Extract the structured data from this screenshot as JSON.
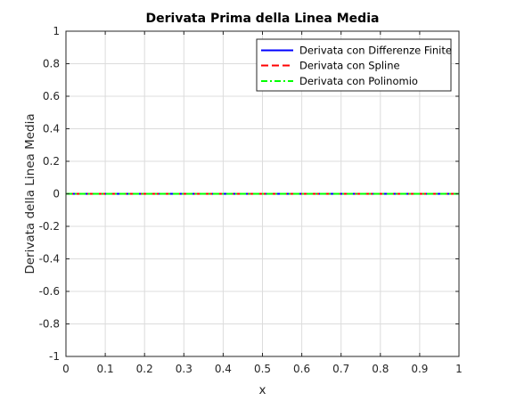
{
  "chart_data": {
    "type": "line",
    "title": "Derivata Prima della Linea Media",
    "xlabel": "x",
    "ylabel": "Derivata della Linea Media",
    "xlim": [
      0,
      1
    ],
    "ylim": [
      -1,
      1
    ],
    "x_ticks": [
      "0",
      "0.1",
      "0.2",
      "0.3",
      "0.4",
      "0.5",
      "0.6",
      "0.7",
      "0.8",
      "0.9",
      "1"
    ],
    "y_ticks": [
      "-1",
      "-0.8",
      "-0.6",
      "-0.4",
      "-0.2",
      "0",
      "0.2",
      "0.4",
      "0.6",
      "0.8",
      "1"
    ],
    "grid": true,
    "legend_position": "top-right",
    "series": [
      {
        "name": "Derivata con Differenze Finite",
        "color": "#0000ff",
        "style": "solid",
        "x": [
          0,
          0.1,
          0.2,
          0.3,
          0.4,
          0.5,
          0.6,
          0.7,
          0.8,
          0.9,
          1
        ],
        "y": [
          0,
          0,
          0,
          0,
          0,
          0,
          0,
          0,
          0,
          0,
          0
        ]
      },
      {
        "name": "Derivata con Spline",
        "color": "#ff0000",
        "style": "dashed",
        "x": [
          0,
          0.1,
          0.2,
          0.3,
          0.4,
          0.5,
          0.6,
          0.7,
          0.8,
          0.9,
          1
        ],
        "y": [
          0,
          0,
          0,
          0,
          0,
          0,
          0,
          0,
          0,
          0,
          0
        ]
      },
      {
        "name": "Derivata con Polinomio",
        "color": "#00ff00",
        "style": "dashdot",
        "x": [
          0,
          0.1,
          0.2,
          0.3,
          0.4,
          0.5,
          0.6,
          0.7,
          0.8,
          0.9,
          1
        ],
        "y": [
          0,
          0,
          0,
          0,
          0,
          0,
          0,
          0,
          0,
          0,
          0
        ]
      }
    ]
  }
}
